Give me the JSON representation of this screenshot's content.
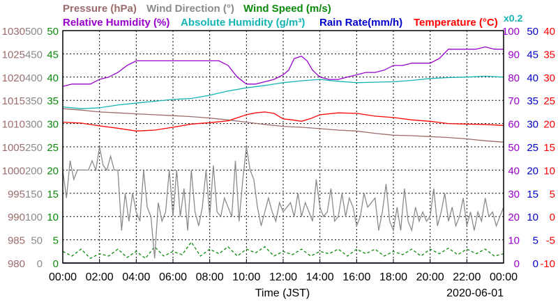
{
  "chart_data": {
    "type": "line",
    "date_label": "2020-06-01",
    "xlabel": "Time (JST)",
    "x_range": [
      "00:00",
      "24:00"
    ],
    "x_ticks": [
      "00:00",
      "02:00",
      "04:00",
      "06:00",
      "08:00",
      "10:00",
      "12:00",
      "14:00",
      "16:00",
      "18:00",
      "20:00",
      "22:00",
      "00:00"
    ],
    "grid": true,
    "legend": {
      "row1": [
        {
          "label": "Pressure (hPa)",
          "color": "#9b6b6b"
        },
        {
          "label": "Wind Direction (°)",
          "color": "#8a8a8a"
        },
        {
          "label": "Wind Speed (m/s)",
          "color": "#0a8a0a"
        }
      ],
      "row2": [
        {
          "label": "Relative Humidity (%)",
          "color": "#9900cc"
        },
        {
          "label": "Absolute Humidity (g/m³)",
          "color": "#14b4b4"
        },
        {
          "label": "Rain Rate(mm/h)",
          "color": "#0000cc"
        },
        {
          "label": "Temperature (°C)",
          "color": "#ff0000"
        }
      ],
      "scale_note": {
        "label": "x0.2",
        "color": "#14b4b4"
      }
    },
    "axes": {
      "pressure": {
        "color": "#9b6b6b",
        "range": [
          980,
          1030
        ],
        "ticks": [
          "1030",
          "1025",
          "1020",
          "1015",
          "1010",
          "1005",
          "1000",
          "995",
          "990",
          "985",
          "980"
        ]
      },
      "wind_direction": {
        "color": "#8a8a8a",
        "range": [
          0,
          500
        ],
        "ticks": [
          "500",
          "450",
          "400",
          "350",
          "300",
          "250",
          "200",
          "150",
          "100",
          "50",
          "0"
        ]
      },
      "wind_speed": {
        "color": "#0a8a0a",
        "range": [
          0,
          50
        ],
        "ticks": [
          "50",
          "45",
          "40",
          "35",
          "30",
          "25",
          "20",
          "15",
          "10",
          "5",
          "0"
        ]
      },
      "relative_humidity": {
        "color": "#9900cc",
        "range": [
          0,
          100
        ],
        "ticks": [
          "100",
          "90",
          "80",
          "70",
          "60",
          "50",
          "40",
          "30",
          "20",
          "10",
          "0"
        ]
      },
      "rain_rate": {
        "color": "#0000cc",
        "range": [
          0,
          50
        ],
        "ticks": [
          "50",
          "45",
          "40",
          "35",
          "30",
          "25",
          "20",
          "15",
          "10",
          "5",
          "0"
        ]
      },
      "temperature": {
        "color": "#ff0000",
        "range": [
          -10,
          40
        ],
        "ticks": [
          "40",
          "35",
          "30",
          "25",
          "20",
          "15",
          "10",
          "5",
          "0",
          "-5",
          "-10"
        ]
      }
    },
    "series": [
      {
        "name": "Relative Humidity (%)",
        "axis": "relative_humidity",
        "color": "#9900cc",
        "x": [
          0,
          0.5,
          1,
          1.5,
          2,
          2.5,
          3,
          3.5,
          4,
          4.5,
          5,
          5.5,
          6,
          6.5,
          7,
          7.5,
          8,
          8.5,
          9,
          9.5,
          10,
          10.5,
          11,
          11.5,
          12,
          12.3,
          12.6,
          13,
          13.3,
          13.6,
          14,
          14.5,
          15,
          15.5,
          16,
          16.5,
          17,
          17.5,
          18,
          18.5,
          19,
          19.5,
          20,
          20.5,
          21,
          21.5,
          22,
          22.5,
          23,
          23.5,
          24
        ],
        "values": [
          76,
          77,
          77,
          77,
          79,
          80,
          82,
          85,
          87,
          87,
          87,
          87,
          87,
          87,
          87,
          87,
          87,
          87,
          85,
          80,
          77,
          77,
          78,
          79,
          81,
          83,
          88,
          89,
          87,
          83,
          80,
          79,
          79,
          80,
          81,
          82,
          82,
          83,
          85,
          85,
          86,
          86,
          86,
          88,
          92,
          92,
          92,
          92,
          93,
          92,
          92
        ]
      },
      {
        "name": "Absolute Humidity (g/m³)",
        "axis": "wind_speed",
        "color": "#14b4b4",
        "x": [
          0,
          1,
          2,
          3,
          4,
          5,
          6,
          7,
          8,
          9,
          10,
          11,
          12,
          13,
          14,
          15,
          16,
          17,
          18,
          19,
          20,
          21,
          22,
          23,
          24
        ],
        "values": [
          33.6,
          33.2,
          33.4,
          34.0,
          34.4,
          34.8,
          35.2,
          35.4,
          36.1,
          37.0,
          37.7,
          38.2,
          38.8,
          39.2,
          39.5,
          39.1,
          38.8,
          38.9,
          39.0,
          39.3,
          39.7,
          39.9,
          40.0,
          40.2,
          40.0
        ]
      },
      {
        "name": "Pressure (hPa)",
        "axis": "pressure",
        "color": "#9b6b6b",
        "x": [
          0,
          1,
          2,
          3,
          4,
          5,
          6,
          7,
          8,
          9,
          10,
          11,
          12,
          13,
          14,
          15,
          16,
          17,
          18,
          19,
          20,
          21,
          22,
          23,
          24
        ],
        "values": [
          1013.2,
          1012.9,
          1012.5,
          1012.3,
          1012.1,
          1011.9,
          1011.7,
          1011.5,
          1011.2,
          1010.8,
          1010.3,
          1009.8,
          1009.4,
          1009.2,
          1008.9,
          1008.6,
          1008.4,
          1007.9,
          1007.5,
          1007.4,
          1007.2,
          1007.0,
          1006.7,
          1006.3,
          1006.0
        ]
      },
      {
        "name": "Temperature (°C)",
        "axis": "temperature",
        "color": "#ff0000",
        "x": [
          0,
          1,
          2,
          3,
          4,
          5,
          6,
          7,
          8,
          9,
          10,
          10.5,
          11,
          11.5,
          12,
          12.5,
          13,
          13.5,
          14,
          15,
          16,
          17,
          18,
          19,
          20,
          21,
          22,
          23,
          24
        ],
        "values": [
          20.3,
          20.1,
          19.5,
          19.0,
          18.4,
          18.6,
          19.2,
          19.9,
          20.2,
          20.6,
          21.9,
          22.3,
          22.5,
          22.2,
          21.0,
          20.8,
          20.5,
          21.1,
          21.9,
          22.3,
          22.2,
          21.6,
          21.3,
          20.8,
          20.5,
          20.0,
          19.9,
          19.8,
          19.6
        ]
      },
      {
        "name": "Wind Direction (°)",
        "axis": "wind_direction",
        "color": "#8a8a8a",
        "x": [
          0,
          0.2,
          0.4,
          0.6,
          0.8,
          1,
          1.2,
          1.4,
          1.6,
          1.8,
          2,
          2.2,
          2.4,
          2.6,
          2.8,
          3,
          3.2,
          3.4,
          3.6,
          3.8,
          4,
          4.2,
          4.4,
          4.6,
          4.8,
          5,
          5.2,
          5.4,
          5.6,
          5.8,
          6,
          6.2,
          6.4,
          6.6,
          6.8,
          7,
          7.2,
          7.4,
          7.6,
          7.8,
          8,
          8.2,
          8.4,
          8.6,
          8.8,
          9,
          9.2,
          9.4,
          9.6,
          9.8,
          10,
          10.2,
          10.4,
          10.6,
          10.8,
          11,
          11.2,
          11.4,
          11.6,
          11.8,
          12,
          12.2,
          12.4,
          12.6,
          12.8,
          13,
          13.2,
          13.4,
          13.6,
          13.8,
          14,
          14.2,
          14.4,
          14.6,
          14.8,
          15,
          15.2,
          15.4,
          15.6,
          15.8,
          16,
          16.2,
          16.4,
          16.6,
          16.8,
          17,
          17.2,
          17.4,
          17.6,
          17.8,
          18,
          18.2,
          18.4,
          18.6,
          18.8,
          19,
          19.2,
          19.4,
          19.6,
          19.8,
          20,
          20.2,
          20.4,
          20.6,
          20.8,
          21,
          21.2,
          21.4,
          21.6,
          21.8,
          22,
          22.2,
          22.4,
          22.6,
          22.8,
          23,
          23.2,
          23.4,
          23.6,
          23.8,
          24
        ],
        "values": [
          200,
          140,
          220,
          180,
          200,
          200,
          200,
          200,
          220,
          200,
          250,
          210,
          200,
          230,
          200,
          200,
          70,
          150,
          90,
          150,
          110,
          90,
          200,
          120,
          100,
          10,
          130,
          90,
          110,
          200,
          100,
          200,
          100,
          160,
          70,
          200,
          110,
          80,
          120,
          200,
          100,
          210,
          110,
          100,
          140,
          120,
          100,
          220,
          90,
          180,
          250,
          200,
          180,
          120,
          80,
          110,
          140,
          110,
          90,
          130,
          110,
          120,
          130,
          100,
          150,
          100,
          130,
          110,
          90,
          180,
          120,
          100,
          110,
          160,
          90,
          100,
          150,
          100,
          140,
          120,
          80,
          100,
          150,
          120,
          130,
          140,
          70,
          110,
          170,
          90,
          70,
          120,
          70,
          160,
          90,
          70,
          120,
          90,
          110,
          90,
          100,
          160,
          80,
          110,
          150,
          90,
          120,
          80,
          100,
          140,
          80,
          110,
          70,
          110,
          90,
          140,
          100,
          110,
          80,
          100,
          120
        ]
      },
      {
        "name": "Wind Speed (m/s)",
        "axis": "wind_speed",
        "color": "#0a8a0a",
        "x": [
          0,
          0.5,
          1,
          1.5,
          2,
          2.5,
          3,
          3.5,
          4,
          4.5,
          5,
          5.5,
          6,
          6.5,
          7,
          7.5,
          8,
          8.5,
          9,
          9.5,
          10,
          10.5,
          11,
          11.5,
          12,
          12.5,
          13,
          13.5,
          14,
          14.5,
          15,
          15.5,
          16,
          16.5,
          17,
          17.5,
          18,
          18.5,
          19,
          19.5,
          20,
          20.5,
          21,
          21.5,
          22,
          22.5,
          23,
          23.5,
          24
        ],
        "values": [
          2.5,
          1.5,
          3,
          1,
          2,
          1.5,
          3,
          1.2,
          2.5,
          1,
          3.5,
          1.5,
          2.5,
          1.8,
          4.5,
          1.5,
          3,
          2,
          3.5,
          1.5,
          3,
          2.2,
          3.5,
          1.5,
          2.5,
          1.8,
          3,
          1.5,
          2.5,
          2,
          3,
          1.5,
          3,
          2,
          3,
          1.5,
          2.5,
          1.8,
          3,
          1.5,
          3,
          2,
          3.2,
          1.8,
          3,
          2,
          3,
          1.5,
          2
        ]
      },
      {
        "name": "Rain Rate(mm/h)",
        "axis": "rain_rate",
        "color": "#0000cc",
        "x": [
          0,
          24
        ],
        "values": [
          0,
          0
        ]
      }
    ]
  }
}
